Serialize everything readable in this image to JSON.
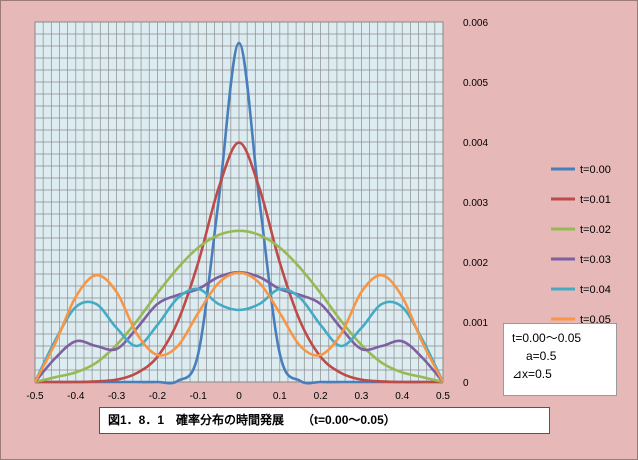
{
  "chart_data": {
    "type": "line",
    "title": "図1．8．1　確率分布の時間発展　　（t=0.00〜0.05）",
    "xlabel": "",
    "ylabel": "",
    "xlim": [
      -0.5,
      0.5
    ],
    "ylim": [
      0,
      0.006
    ],
    "x_ticks": [
      "-0.5",
      "-0.4",
      "-0.3",
      "-0.2",
      "-0.1",
      "0",
      "0.1",
      "0.2",
      "0.3",
      "0.4",
      "0.5"
    ],
    "y_ticks": [
      "0",
      "0.001",
      "0.002",
      "0.003",
      "0.004",
      "0.005",
      "0.006"
    ],
    "grid": true,
    "legend_position": "right",
    "x": [
      -0.5,
      -0.45,
      -0.4,
      -0.35,
      -0.3,
      -0.25,
      -0.2,
      -0.15,
      -0.1,
      -0.05,
      0,
      0.05,
      0.1,
      0.15,
      0.2,
      0.25,
      0.3,
      0.35,
      0.4,
      0.45,
      0.5
    ],
    "series": [
      {
        "name": "t=0.00",
        "color": "#4a7ebb",
        "values": [
          0,
          0,
          0,
          0,
          0,
          0,
          0,
          2e-05,
          0.00047,
          0.00302,
          0.00565,
          0.00302,
          0.00047,
          2e-05,
          0,
          0,
          0,
          0,
          0,
          0,
          0
        ]
      },
      {
        "name": "t=0.01",
        "color": "#be4b48",
        "values": [
          0,
          0,
          0,
          1e-05,
          4e-05,
          0.00015,
          0.00042,
          0.00101,
          0.00199,
          0.00323,
          0.00399,
          0.00323,
          0.00199,
          0.00101,
          0.00042,
          0.00015,
          4e-05,
          1e-05,
          0,
          0,
          0
        ]
      },
      {
        "name": "t=0.02",
        "color": "#98b954",
        "values": [
          0,
          8e-05,
          0.00016,
          0.00032,
          0.00062,
          0.00102,
          0.00148,
          0.0019,
          0.00224,
          0.00245,
          0.00252,
          0.00245,
          0.00224,
          0.0019,
          0.00148,
          0.00102,
          0.00062,
          0.00032,
          0.00016,
          8e-05,
          0
        ]
      },
      {
        "name": "t=0.03",
        "color": "#7d60a0",
        "values": [
          0,
          0.0004,
          0.00068,
          0.0006,
          0.00055,
          0.0009,
          0.0013,
          0.00145,
          0.00155,
          0.00175,
          0.00183,
          0.00175,
          0.00155,
          0.00145,
          0.0013,
          0.0009,
          0.00055,
          0.0006,
          0.00068,
          0.0004,
          0
        ]
      },
      {
        "name": "t=0.04",
        "color": "#46aac5",
        "values": [
          0,
          0.0007,
          0.00125,
          0.0013,
          0.0009,
          0.0006,
          0.00095,
          0.0014,
          0.00155,
          0.0013,
          0.0012,
          0.0013,
          0.00155,
          0.0014,
          0.00095,
          0.0006,
          0.0009,
          0.0013,
          0.00125,
          0.0007,
          0
        ]
      },
      {
        "name": "t=0.05",
        "color": "#f79646",
        "values": [
          0,
          0.00065,
          0.00142,
          0.00178,
          0.0015,
          0.0008,
          0.00045,
          0.0006,
          0.00115,
          0.00165,
          0.00182,
          0.00165,
          0.00115,
          0.0006,
          0.00045,
          0.0008,
          0.0015,
          0.00178,
          0.00142,
          0.00065,
          0
        ]
      }
    ]
  },
  "params": {
    "t_range": "t=0.00〜0.05",
    "a": "a=0.5",
    "dx": "⊿x=0.5"
  },
  "caption": "図1．8．1　確率分布の時間発展　　（t=0.00〜0.05）"
}
